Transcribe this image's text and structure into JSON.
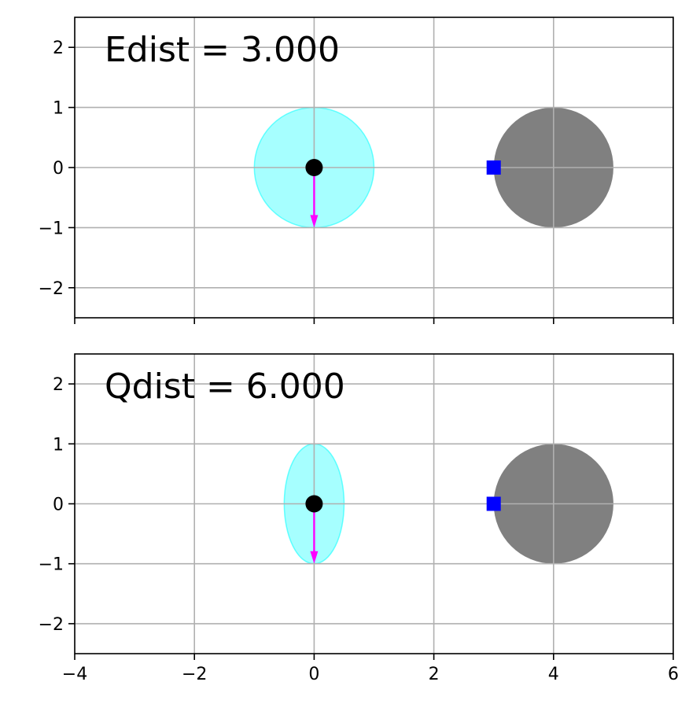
{
  "chart_data": [
    {
      "type": "scatter",
      "annotation": "Edist = 3.000",
      "xlim": [
        -4,
        6
      ],
      "ylim": [
        -2.5,
        2.5
      ],
      "xticks": [
        -4,
        -2,
        0,
        2,
        4,
        6
      ],
      "yticks": [
        -2,
        -1,
        0,
        1,
        2
      ],
      "x_tick_labels_visible": false,
      "grid": true,
      "ellipse": {
        "cx": 0,
        "cy": 0,
        "rx": 1.0,
        "ry": 1.0,
        "color": "#00ffff",
        "opacity": 0.35
      },
      "obstacle": {
        "cx": 4,
        "cy": 0,
        "r": 1.0,
        "color": "#808080"
      },
      "point": {
        "x": 0,
        "y": 0,
        "color": "#000000"
      },
      "arrow": {
        "x": 0,
        "y": 0,
        "dx": 0,
        "dy": -1.0,
        "color": "#ff00ff"
      },
      "closest_point": {
        "x": 3,
        "y": 0,
        "color": "#0000ff",
        "marker": "square"
      }
    },
    {
      "type": "scatter",
      "annotation": "Qdist = 6.000",
      "xlim": [
        -4,
        6
      ],
      "ylim": [
        -2.5,
        2.5
      ],
      "xticks": [
        -4,
        -2,
        0,
        2,
        4,
        6
      ],
      "yticks": [
        -2,
        -1,
        0,
        1,
        2
      ],
      "x_tick_labels_visible": true,
      "grid": true,
      "ellipse": {
        "cx": 0,
        "cy": 0,
        "rx": 0.5,
        "ry": 1.0,
        "color": "#00ffff",
        "opacity": 0.35
      },
      "obstacle": {
        "cx": 4,
        "cy": 0,
        "r": 1.0,
        "color": "#808080"
      },
      "point": {
        "x": 0,
        "y": 0,
        "color": "#000000"
      },
      "arrow": {
        "x": 0,
        "y": 0,
        "dx": 0,
        "dy": -1.0,
        "color": "#ff00ff"
      },
      "closest_point": {
        "x": 3,
        "y": 0,
        "color": "#0000ff",
        "marker": "square"
      }
    }
  ]
}
